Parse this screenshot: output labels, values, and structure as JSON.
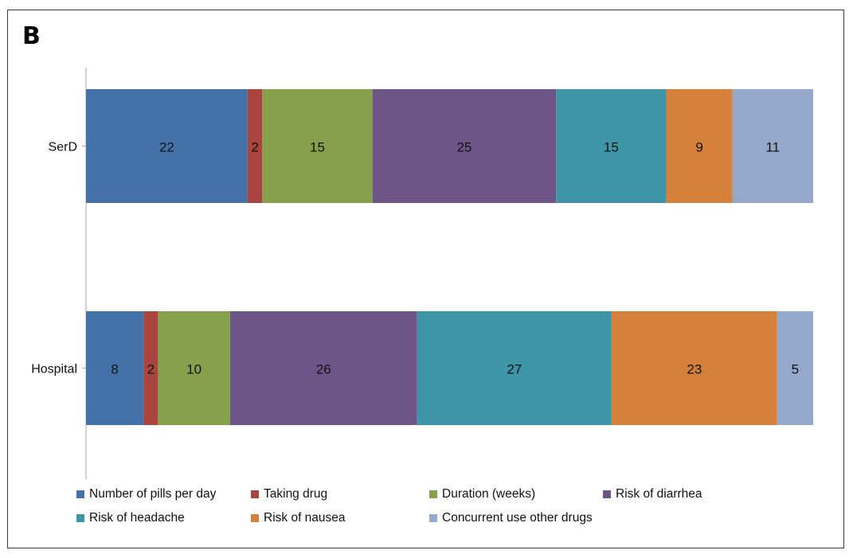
{
  "panel_label": "B",
  "chart_data": {
    "type": "bar",
    "orientation": "horizontal",
    "stacked": "percent",
    "categories": [
      "SerD",
      "Hospital"
    ],
    "series": [
      {
        "name": "Number of pills per day",
        "color": "#4472a8",
        "values": [
          22,
          8
        ]
      },
      {
        "name": "Taking drug",
        "color": "#a9443e",
        "values": [
          2,
          2
        ]
      },
      {
        "name": "Duration (weeks)",
        "color": "#86a04b",
        "values": [
          15,
          10
        ]
      },
      {
        "name": "Risk of diarrhea",
        "color": "#6e5588",
        "values": [
          25,
          26
        ]
      },
      {
        "name": "Risk of headache",
        "color": "#3f95a8",
        "values": [
          15,
          27
        ]
      },
      {
        "name": "Risk of nausea",
        "color": "#d5813c",
        "values": [
          9,
          23
        ]
      },
      {
        "name": "Concurrent use other drugs",
        "color": "#93a8ca",
        "values": [
          11,
          5
        ]
      }
    ],
    "legend_position": "bottom",
    "grid": false
  }
}
